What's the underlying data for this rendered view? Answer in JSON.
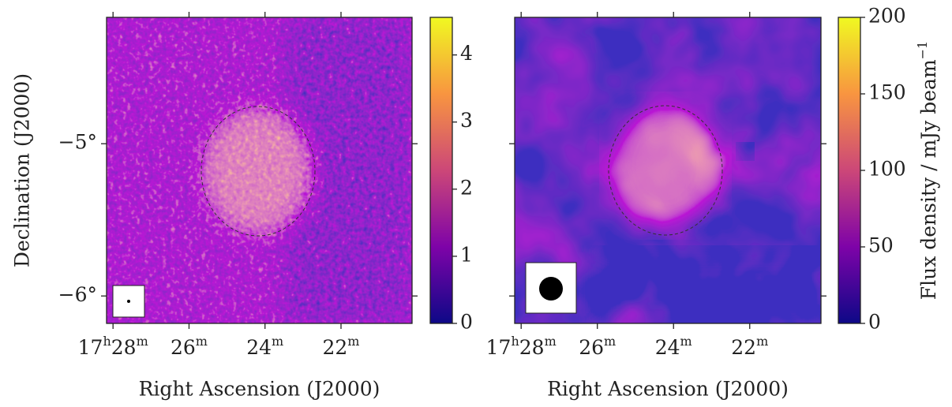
{
  "chart_data": [
    {
      "type": "image",
      "colormap": "plasma",
      "xlabel": "Right Ascension (J2000)",
      "ylabel": "Declination (J2000)",
      "xlim": [
        28.17,
        20.13
      ],
      "xticks": [
        {
          "value": 28,
          "label": [
            "17",
            "h",
            "28",
            "m"
          ]
        },
        {
          "value": 26,
          "label": [
            "26",
            "m"
          ]
        },
        {
          "value": 24,
          "label": [
            "24",
            "m"
          ]
        },
        {
          "value": 22,
          "label": [
            "22",
            "m"
          ]
        }
      ],
      "ylim": [
        -6.18,
        -4.17
      ],
      "yticks": [
        {
          "value": -5,
          "label": "−5°"
        },
        {
          "value": -6,
          "label": "−6°"
        }
      ],
      "clim": [
        0,
        4.56
      ],
      "cticks": [
        0,
        1,
        2,
        3,
        4
      ]
    },
    {
      "type": "image",
      "colormap": "plasma",
      "xlabel": "Right Ascension (J2000)",
      "xlim": [
        28.17,
        20.13
      ],
      "xticks": [
        {
          "value": 28,
          "label": [
            "17",
            "h",
            "28",
            "m"
          ]
        },
        {
          "value": 26,
          "label": [
            "26",
            "m"
          ]
        },
        {
          "value": 24,
          "label": [
            "24",
            "m"
          ]
        },
        {
          "value": 22,
          "label": [
            "22",
            "m"
          ]
        }
      ],
      "ylim": [
        -6.18,
        -4.17
      ],
      "yticks": [
        -5,
        -6
      ],
      "clim": [
        0,
        200
      ],
      "cticks": [
        0,
        50,
        100,
        150,
        200
      ],
      "colorbar_label": [
        "Flux density / mJy beam",
        "−1"
      ]
    }
  ]
}
